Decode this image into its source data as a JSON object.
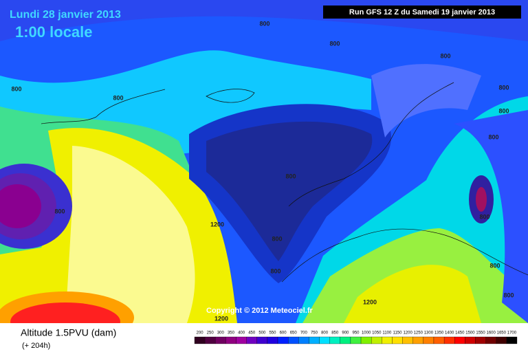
{
  "header": {
    "date": "Lundi 28 janvier 2013",
    "time": "1:00 locale",
    "run": "Run GFS 12 Z du Samedi 19 janvier 2013"
  },
  "map": {
    "contour_labels": [
      800,
      800,
      800,
      800,
      800,
      800,
      800,
      800,
      800,
      800,
      1200,
      800,
      800,
      800,
      800,
      800,
      1200,
      1200
    ]
  },
  "copyright": "Copyright © 2012 Meteociel.fr",
  "footer": {
    "title": "Altitude 1.5PVU (dam)",
    "lead": "(+ 204h)",
    "scale": [
      200,
      250,
      300,
      350,
      400,
      450,
      500,
      550,
      600,
      650,
      700,
      750,
      800,
      850,
      900,
      950,
      1000,
      1050,
      1100,
      1150,
      1200,
      1250,
      1300,
      1350,
      1400,
      1450,
      1500,
      1550,
      1600,
      1650,
      1700
    ]
  }
}
